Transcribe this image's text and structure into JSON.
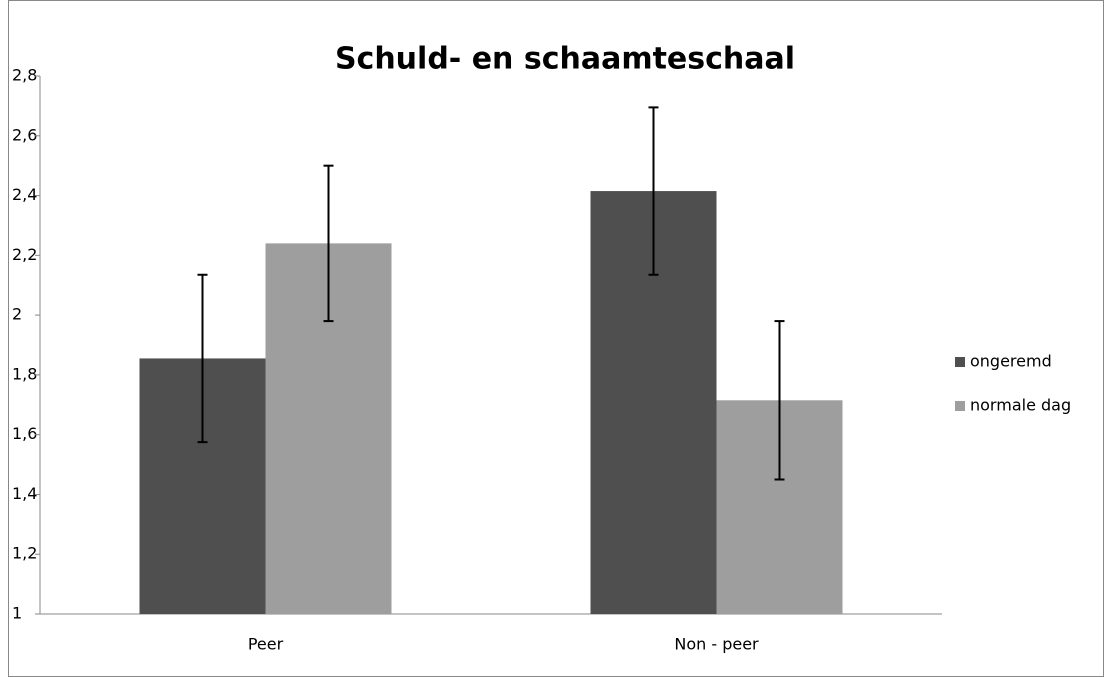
{
  "chart_data": {
    "type": "bar",
    "title": "Schuld- en schaamteschaal",
    "categories": [
      "Peer",
      "Non - peer"
    ],
    "series": [
      {
        "name": "ongeremd",
        "color": "#4f4f4f",
        "values": [
          1.855,
          2.415
        ],
        "errors": [
          0.28,
          0.28
        ]
      },
      {
        "name": "normale dag",
        "color": "#9e9e9e",
        "values": [
          2.24,
          1.715
        ],
        "errors": [
          0.26,
          0.265
        ]
      }
    ],
    "ylim": [
      1,
      2.8
    ],
    "yticks": [
      1,
      {
        "value": 1.2,
        "label": "1,2"
      },
      {
        "value": 1.4,
        "label": "1,4"
      },
      {
        "value": 1.6,
        "label": "1,6"
      },
      {
        "value": 1.8,
        "label": "1,8"
      },
      2,
      {
        "value": 2.2,
        "label": "2,2"
      },
      {
        "value": 2.4,
        "label": "2,4"
      },
      {
        "value": 2.6,
        "label": "2,6"
      },
      {
        "value": 2.8,
        "label": "2,8"
      }
    ],
    "grid": false,
    "legend": "right"
  }
}
